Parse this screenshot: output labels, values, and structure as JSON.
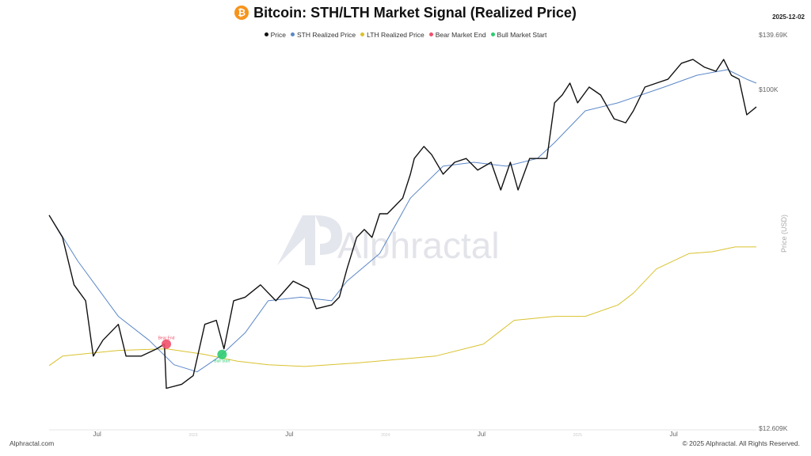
{
  "header": {
    "title": "Bitcoin: STH/LTH Market Signal (Realized Price)",
    "coin_icon": "bitcoin-icon",
    "date": "2025-12-02"
  },
  "footer": {
    "left": "Alphractal.com",
    "right": "© 2025 Alphractal. All Rights Reserved."
  },
  "watermark": "Alphractal",
  "chart_data": {
    "type": "line",
    "title": "Bitcoin: STH/LTH Market Signal (Realized Price)",
    "ylabel": "Price (USD)",
    "yscale": "log",
    "ylim": [
      12.609,
      139.69
    ],
    "xlim": [
      2022.25,
      2025.93
    ],
    "ytick_labels": [
      {
        "value": 139.69,
        "label": "$139.69K"
      },
      {
        "value": 100,
        "label": "$100K"
      },
      {
        "value": 12.609,
        "label": "$12.609K"
      }
    ],
    "xtick_labels": [
      {
        "value": 2022.5,
        "label": "Jul"
      },
      {
        "value": 2023.0,
        "label": "2023"
      },
      {
        "value": 2023.5,
        "label": "Jul"
      },
      {
        "value": 2024.0,
        "label": "2024"
      },
      {
        "value": 2024.5,
        "label": "Jul"
      },
      {
        "value": 2025.0,
        "label": "2025"
      },
      {
        "value": 2025.5,
        "label": "Jul"
      }
    ],
    "legend": [
      "Price",
      "STH Realized Price",
      "LTH Realized Price",
      "Bear Market End",
      "Bull Market Start"
    ],
    "legend_position": "top-center",
    "colors": {
      "Price": "#111111",
      "STH Realized Price": "#5b87c8",
      "LTH Realized Price": "#d9c22e",
      "Bear Market End": "#f0506a",
      "Bull Market Start": "#2ecc71"
    },
    "series": [
      {
        "name": "Price",
        "unit": "K USD",
        "points": [
          [
            2022.25,
            46.4
          ],
          [
            2022.32,
            40.5
          ],
          [
            2022.38,
            30.3
          ],
          [
            2022.44,
            27.5
          ],
          [
            2022.48,
            19.6
          ],
          [
            2022.53,
            21.6
          ],
          [
            2022.61,
            23.8
          ],
          [
            2022.65,
            19.6
          ],
          [
            2022.73,
            19.6
          ],
          [
            2022.81,
            20.5
          ],
          [
            2022.85,
            21.1
          ],
          [
            2022.86,
            16.1
          ],
          [
            2022.94,
            16.5
          ],
          [
            2023.0,
            17.4
          ],
          [
            2023.06,
            23.8
          ],
          [
            2023.12,
            24.4
          ],
          [
            2023.16,
            20.5
          ],
          [
            2023.21,
            27.5
          ],
          [
            2023.27,
            28.1
          ],
          [
            2023.35,
            30.3
          ],
          [
            2023.43,
            27.5
          ],
          [
            2023.52,
            31.0
          ],
          [
            2023.6,
            29.6
          ],
          [
            2023.64,
            26.2
          ],
          [
            2023.72,
            26.8
          ],
          [
            2023.76,
            28.1
          ],
          [
            2023.8,
            33.4
          ],
          [
            2023.85,
            40.5
          ],
          [
            2023.89,
            42.5
          ],
          [
            2023.93,
            40.5
          ],
          [
            2023.97,
            46.8
          ],
          [
            2024.01,
            46.8
          ],
          [
            2024.05,
            49.1
          ],
          [
            2024.09,
            51.5
          ],
          [
            2024.13,
            59.6
          ],
          [
            2024.15,
            65.6
          ],
          [
            2024.2,
            70.6
          ],
          [
            2024.24,
            67.2
          ],
          [
            2024.3,
            59.6
          ],
          [
            2024.36,
            64.1
          ],
          [
            2024.42,
            65.6
          ],
          [
            2024.48,
            61.1
          ],
          [
            2024.55,
            64.1
          ],
          [
            2024.6,
            54.1
          ],
          [
            2024.65,
            64.1
          ],
          [
            2024.69,
            54.1
          ],
          [
            2024.75,
            65.6
          ],
          [
            2024.84,
            65.6
          ],
          [
            2024.88,
            92.2
          ],
          [
            2024.92,
            96.7
          ],
          [
            2024.96,
            104.0
          ],
          [
            2025.0,
            92.2
          ],
          [
            2025.06,
            101.5
          ],
          [
            2025.12,
            96.7
          ],
          [
            2025.19,
            83.6
          ],
          [
            2025.25,
            81.6
          ],
          [
            2025.29,
            87.8
          ],
          [
            2025.35,
            101.5
          ],
          [
            2025.41,
            104.0
          ],
          [
            2025.47,
            106.5
          ],
          [
            2025.54,
            117.4
          ],
          [
            2025.6,
            120.2
          ],
          [
            2025.66,
            114.6
          ],
          [
            2025.72,
            111.8
          ],
          [
            2025.76,
            120.2
          ],
          [
            2025.8,
            109.1
          ],
          [
            2025.84,
            106.5
          ],
          [
            2025.88,
            85.7
          ],
          [
            2025.93,
            89.9
          ]
        ]
      },
      {
        "name": "STH Realized Price",
        "unit": "K USD",
        "points": [
          [
            2022.25,
            46.4
          ],
          [
            2022.4,
            35.0
          ],
          [
            2022.61,
            25.0
          ],
          [
            2022.77,
            21.6
          ],
          [
            2022.9,
            18.6
          ],
          [
            2023.02,
            17.8
          ],
          [
            2023.14,
            19.6
          ],
          [
            2023.27,
            22.6
          ],
          [
            2023.39,
            27.5
          ],
          [
            2023.56,
            28.1
          ],
          [
            2023.72,
            27.5
          ],
          [
            2023.8,
            31.0
          ],
          [
            2023.97,
            36.7
          ],
          [
            2024.13,
            51.5
          ],
          [
            2024.3,
            62.6
          ],
          [
            2024.46,
            64.1
          ],
          [
            2024.63,
            62.6
          ],
          [
            2024.79,
            65.6
          ],
          [
            2024.88,
            72.3
          ],
          [
            2025.04,
            87.8
          ],
          [
            2025.21,
            92.2
          ],
          [
            2025.45,
            101.5
          ],
          [
            2025.62,
            109.1
          ],
          [
            2025.78,
            112.9
          ],
          [
            2025.88,
            106.5
          ],
          [
            2025.93,
            104.0
          ]
        ]
      },
      {
        "name": "LTH Realized Price",
        "unit": "K USD",
        "points": [
          [
            2022.25,
            18.5
          ],
          [
            2022.32,
            19.6
          ],
          [
            2022.61,
            20.3
          ],
          [
            2022.86,
            20.5
          ],
          [
            2023.06,
            19.8
          ],
          [
            2023.23,
            19.0
          ],
          [
            2023.39,
            18.6
          ],
          [
            2023.58,
            18.4
          ],
          [
            2023.85,
            18.8
          ],
          [
            2024.26,
            19.6
          ],
          [
            2024.51,
            21.1
          ],
          [
            2024.67,
            24.4
          ],
          [
            2024.88,
            25.0
          ],
          [
            2025.04,
            25.0
          ],
          [
            2025.21,
            26.8
          ],
          [
            2025.29,
            28.8
          ],
          [
            2025.41,
            33.4
          ],
          [
            2025.58,
            36.7
          ],
          [
            2025.7,
            37.1
          ],
          [
            2025.82,
            38.2
          ],
          [
            2025.93,
            38.2
          ]
        ]
      }
    ],
    "markers": [
      {
        "name": "Bear Market End",
        "label": "Bear End",
        "x": 2022.86,
        "y": 21.1
      },
      {
        "name": "Bull Market Start",
        "label": "Bull Start",
        "x": 2023.15,
        "y": 19.8
      }
    ]
  }
}
